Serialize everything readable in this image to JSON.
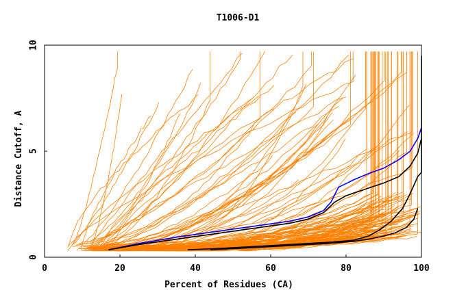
{
  "chart_data": {
    "type": "line",
    "title": "T1006-D1",
    "xlabel": "Percent of Residues (CA)",
    "ylabel": "Distance Cutoff, A",
    "xlim": [
      0,
      100
    ],
    "ylim": [
      0,
      10
    ],
    "x_ticks": [
      0,
      20,
      40,
      60,
      80,
      100
    ],
    "y_ticks": [
      0,
      5,
      10
    ],
    "grid": false,
    "legend": "none",
    "colors": {
      "group_orange": "#ff8000",
      "highlight_blue": "#0000ff",
      "highlight_black": "#000000",
      "axis": "#000000"
    },
    "highlight_series": [
      {
        "name": "blue-model",
        "color": "#0000ff",
        "x": [
          17,
          25,
          35,
          45,
          55,
          65,
          70,
          74,
          76,
          78,
          82,
          86,
          90,
          94,
          97,
          99,
          100
        ],
        "y": [
          0.35,
          0.65,
          0.95,
          1.2,
          1.45,
          1.7,
          1.9,
          2.2,
          2.6,
          3.3,
          3.65,
          3.95,
          4.2,
          4.6,
          5.0,
          5.6,
          6.1
        ]
      },
      {
        "name": "black-model-1",
        "color": "#000000",
        "x": [
          17,
          25,
          35,
          45,
          55,
          65,
          70,
          74,
          77,
          80,
          85,
          90,
          94,
          97,
          99,
          100
        ],
        "y": [
          0.35,
          0.6,
          0.85,
          1.1,
          1.35,
          1.6,
          1.8,
          2.1,
          2.6,
          2.9,
          3.2,
          3.5,
          3.8,
          4.3,
          4.9,
          5.6
        ]
      },
      {
        "name": "black-model-2",
        "color": "#000000",
        "x": [
          38,
          45,
          55,
          65,
          75,
          82,
          86,
          89,
          92,
          95,
          97,
          98.5,
          99,
          100,
          100
        ],
        "y": [
          0.35,
          0.4,
          0.5,
          0.6,
          0.7,
          0.8,
          1.0,
          1.3,
          1.7,
          2.3,
          3.0,
          3.6,
          3.8,
          4.0,
          9.5
        ]
      },
      {
        "name": "black-model-3",
        "color": "#000000",
        "x": [
          44,
          55,
          65,
          75,
          82,
          86,
          90,
          93,
          96,
          98,
          99
        ],
        "y": [
          0.35,
          0.45,
          0.55,
          0.65,
          0.75,
          0.85,
          1.0,
          1.15,
          1.4,
          1.8,
          2.3
        ]
      }
    ],
    "group_series_count": 150
  }
}
